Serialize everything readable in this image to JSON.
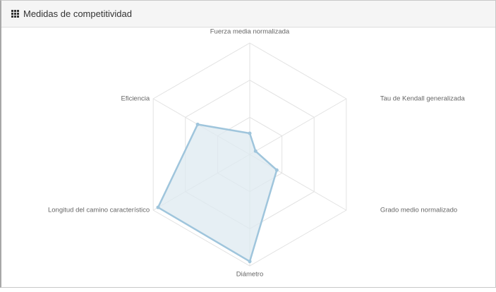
{
  "panel": {
    "title": "Medidas de competitividad",
    "icon": "th-grid-icon"
  },
  "chart_data": {
    "type": "radar",
    "axes": [
      "Fuerza media normalizada",
      "Tau de Kendall generalizada",
      "Grado medio normalizado",
      "Diámetro",
      "Longitud del camino característico",
      "Eficiencia"
    ],
    "max": 1,
    "levels": 3,
    "series": [
      {
        "values": [
          0.19,
          0.06,
          0.28,
          0.96,
          0.95,
          0.54
        ]
      }
    ],
    "colors": {
      "line": "#9fc5dc",
      "fill": "#dde9f0",
      "grid": "#e2e2e2",
      "label": "#666666"
    }
  }
}
